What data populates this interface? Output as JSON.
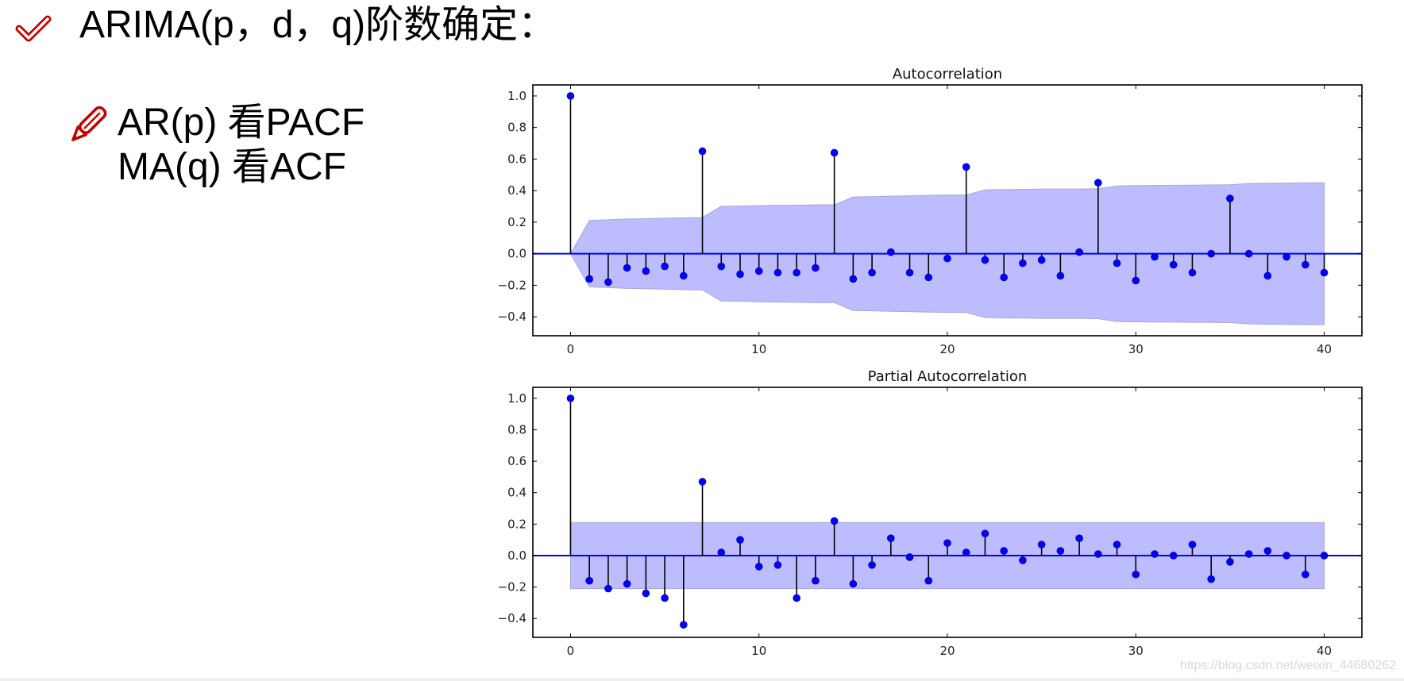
{
  "slide": {
    "title": "ARIMA(p，d，q)阶数确定：",
    "title_icon": "checkmark-icon",
    "bullet_icon": "pencil-icon",
    "rules": [
      {
        "text": "AR(p)  看PACF"
      },
      {
        "text": "MA(q) 看ACF"
      }
    ],
    "icon_color": "#c00000",
    "watermark": "https://blog.csdn.net/weixin_44680262"
  },
  "chart_data": [
    {
      "type": "stem",
      "title": "Autocorrelation",
      "xlabel": "",
      "ylabel": "",
      "x": [
        0,
        1,
        2,
        3,
        4,
        5,
        6,
        7,
        8,
        9,
        10,
        11,
        12,
        13,
        14,
        15,
        16,
        17,
        18,
        19,
        20,
        21,
        22,
        23,
        24,
        25,
        26,
        27,
        28,
        29,
        30,
        31,
        32,
        33,
        34,
        35,
        36,
        37,
        38,
        39,
        40
      ],
      "values": [
        1.0,
        -0.16,
        -0.18,
        -0.09,
        -0.11,
        -0.08,
        -0.14,
        0.65,
        -0.08,
        -0.13,
        -0.11,
        -0.12,
        -0.12,
        -0.09,
        0.64,
        -0.16,
        -0.12,
        0.01,
        -0.12,
        -0.15,
        -0.03,
        0.55,
        -0.04,
        -0.15,
        -0.06,
        -0.04,
        -0.14,
        0.01,
        0.45,
        -0.06,
        -0.17,
        -0.02,
        -0.07,
        -0.12,
        0.0,
        0.35,
        0.0,
        -0.14,
        -0.02,
        -0.07,
        -0.12
      ],
      "confint_upper": [
        0.0,
        0.21,
        0.215,
        0.22,
        0.222,
        0.225,
        0.228,
        0.23,
        0.3,
        0.302,
        0.305,
        0.307,
        0.308,
        0.31,
        0.31,
        0.36,
        0.362,
        0.365,
        0.367,
        0.37,
        0.372,
        0.372,
        0.405,
        0.407,
        0.408,
        0.41,
        0.41,
        0.41,
        0.412,
        0.43,
        0.432,
        0.433,
        0.434,
        0.435,
        0.436,
        0.437,
        0.445,
        0.447,
        0.448,
        0.449,
        0.45
      ],
      "xticks": [
        0,
        10,
        20,
        30,
        40
      ],
      "yticks": [
        "1.0",
        "0.8",
        "0.6",
        "0.4",
        "0.2",
        "0.0",
        "−0.2",
        "−0.4"
      ],
      "xlim": [
        -2,
        42
      ],
      "ylim": [
        -0.52,
        1.07
      ],
      "grid": false,
      "legend": null,
      "colors": {
        "marker": "#0000ff",
        "stem": "#000000",
        "baseline": "#0000ff",
        "band": "#bcbcff"
      }
    },
    {
      "type": "stem",
      "title": "Partial Autocorrelation",
      "xlabel": "",
      "ylabel": "",
      "x": [
        0,
        1,
        2,
        3,
        4,
        5,
        6,
        7,
        8,
        9,
        10,
        11,
        12,
        13,
        14,
        15,
        16,
        17,
        18,
        19,
        20,
        21,
        22,
        23,
        24,
        25,
        26,
        27,
        28,
        29,
        30,
        31,
        32,
        33,
        34,
        35,
        36,
        37,
        38,
        39,
        40
      ],
      "values": [
        1.0,
        -0.16,
        -0.21,
        -0.18,
        -0.24,
        -0.27,
        -0.44,
        0.47,
        0.02,
        0.1,
        -0.07,
        -0.06,
        -0.27,
        -0.16,
        0.22,
        -0.18,
        -0.06,
        0.11,
        -0.01,
        -0.16,
        0.08,
        0.02,
        0.14,
        0.03,
        -0.03,
        0.07,
        0.03,
        0.11,
        0.01,
        0.07,
        -0.12,
        0.01,
        0.0,
        0.07,
        -0.15,
        -0.04,
        0.01,
        0.03,
        0.0,
        -0.12,
        0.0
      ],
      "confint_upper": 0.21,
      "xticks": [
        0,
        10,
        20,
        30,
        40
      ],
      "yticks": [
        "1.0",
        "0.8",
        "0.6",
        "0.4",
        "0.2",
        "0.0",
        "−0.2",
        "−0.4"
      ],
      "xlim": [
        -2,
        42
      ],
      "ylim": [
        -0.52,
        1.07
      ],
      "grid": false,
      "legend": null,
      "colors": {
        "marker": "#0000ff",
        "stem": "#000000",
        "baseline": "#0000ff",
        "band": "#bcbcff"
      }
    }
  ]
}
